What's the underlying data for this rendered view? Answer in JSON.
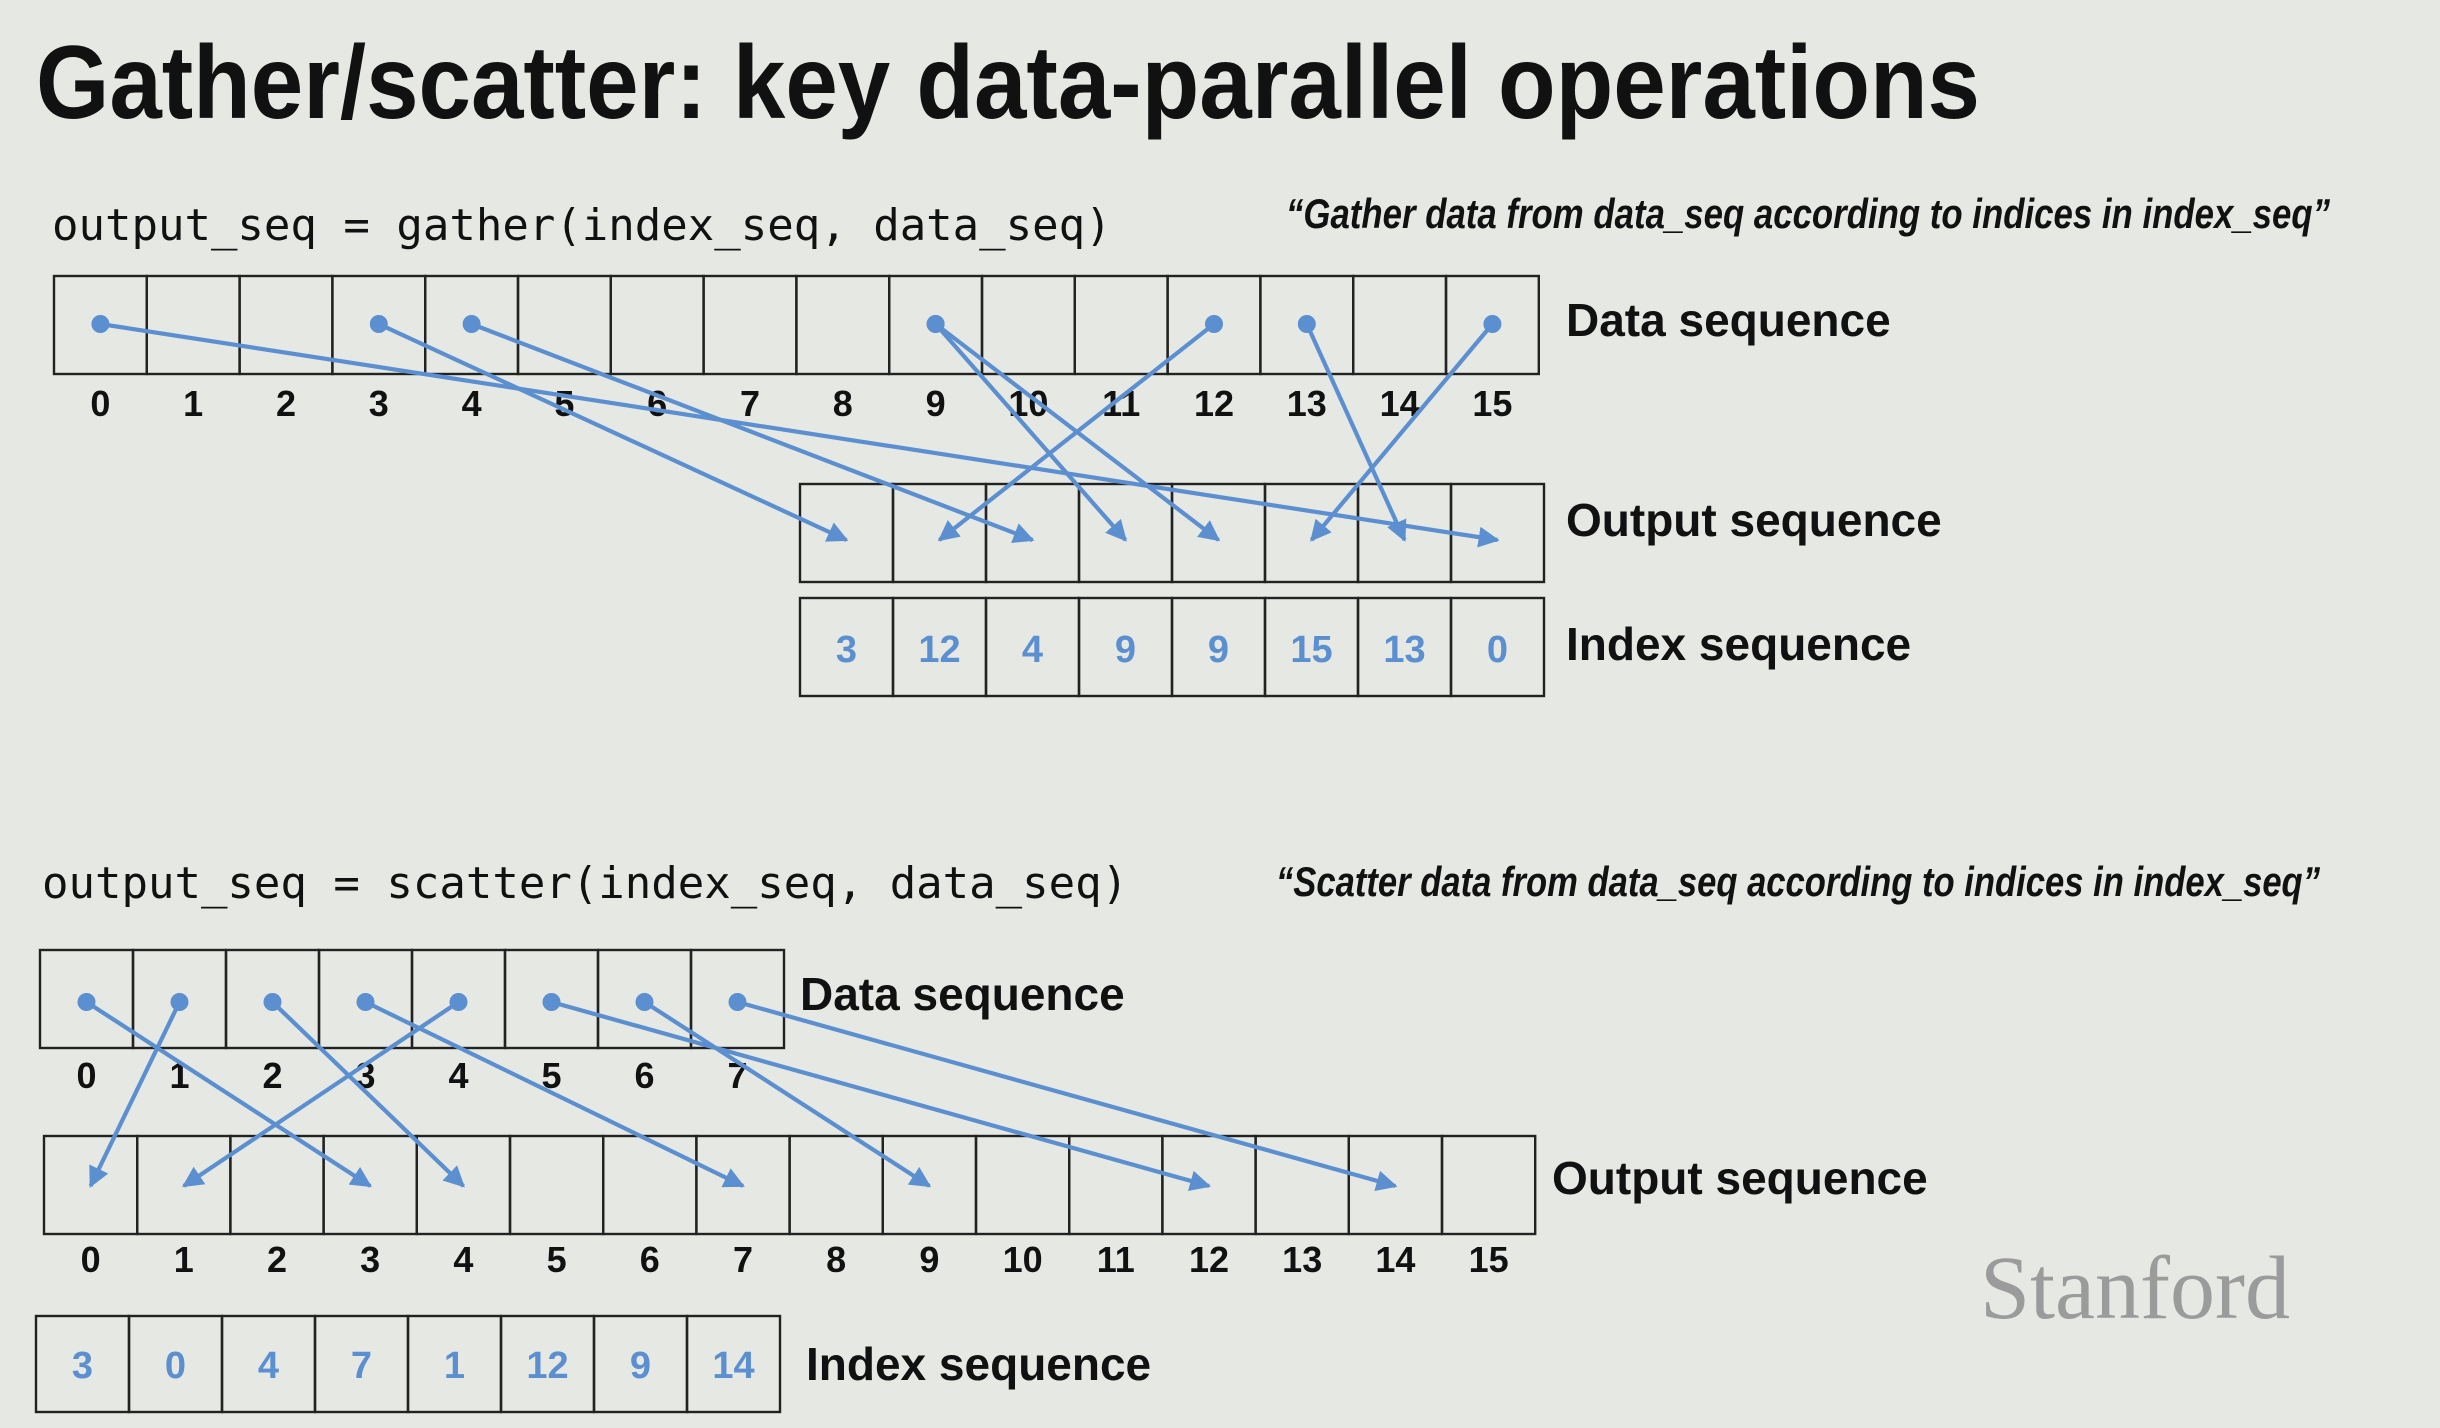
{
  "title": "Gather/scatter: key data-parallel operations",
  "logo": "Stanford",
  "colors": {
    "accent": "#5b8fd0",
    "background": "#e6e8e3",
    "text": "#111111"
  },
  "gather": {
    "code": "output_seq = gather(index_seq, data_seq)",
    "quote": "“Gather data from data_seq according to indices in index_seq”",
    "data_label": "Data sequence",
    "output_label": "Output sequence",
    "index_label": "Index sequence",
    "data_ticks": [
      "0",
      "1",
      "2",
      "3",
      "4",
      "5",
      "6",
      "7",
      "8",
      "9",
      "10",
      "11",
      "12",
      "13",
      "14",
      "15"
    ],
    "index_values": [
      3,
      12,
      4,
      9,
      9,
      15,
      13,
      0
    ]
  },
  "scatter": {
    "code": "output_seq = scatter(index_seq, data_seq)",
    "quote": "“Scatter data from data_seq according to indices in index_seq”",
    "data_label": "Data sequence",
    "output_label": "Output sequence",
    "index_label": "Index sequence",
    "data_ticks": [
      "0",
      "1",
      "2",
      "3",
      "4",
      "5",
      "6",
      "7"
    ],
    "output_ticks": [
      "0",
      "1",
      "2",
      "3",
      "4",
      "5",
      "6",
      "7",
      "8",
      "9",
      "10",
      "11",
      "12",
      "13",
      "14",
      "15"
    ],
    "index_values": [
      3,
      0,
      4,
      7,
      1,
      12,
      9,
      14
    ]
  }
}
